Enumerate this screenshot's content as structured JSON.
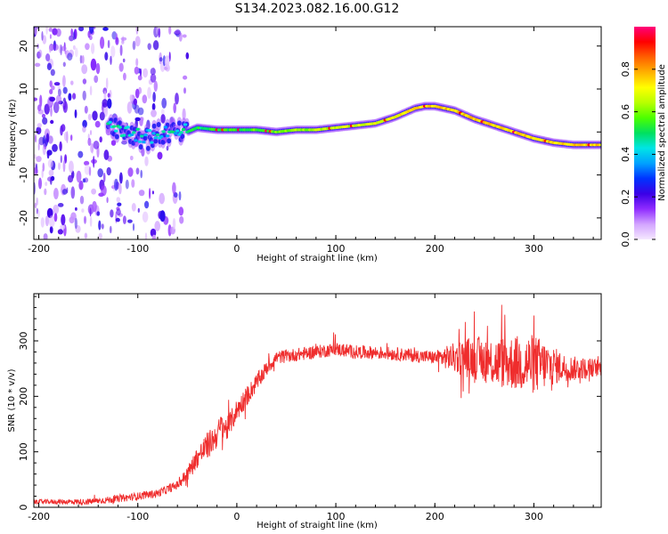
{
  "title": "S134.2023.082.16.00.G12",
  "chart_data": [
    {
      "type": "heatmap",
      "xlabel": "Height of straight line (km)",
      "ylabel": "Frequency (Hz)",
      "xlim": [
        -205,
        368
      ],
      "ylim": [
        -25,
        24.5
      ],
      "xticks": [
        -200,
        -100,
        0,
        100,
        200,
        300
      ],
      "yticks": [
        -20,
        -10,
        0,
        10,
        20
      ],
      "ridge": {
        "x": [
          -130,
          -110,
          -90,
          -70,
          -55,
          -40,
          -20,
          0,
          20,
          40,
          60,
          80,
          100,
          120,
          140,
          160,
          170,
          180,
          190,
          200,
          210,
          220,
          240,
          260,
          280,
          300,
          320,
          340,
          368
        ],
        "y": [
          2.5,
          0,
          -1.5,
          0,
          -0.5,
          1,
          0.5,
          0.5,
          0.5,
          0,
          0.5,
          0.5,
          1,
          1.5,
          2,
          3.5,
          4.5,
          5.5,
          6,
          6,
          5.5,
          5,
          3,
          1.5,
          0,
          -1.5,
          -2.5,
          -3,
          -3
        ]
      },
      "noise_region_x": [
        -205,
        -50
      ],
      "colorbar": {
        "label": "Normalized spectral amplitude",
        "ticks": [
          "0.0",
          "0.2",
          "0.4",
          "0.6",
          "0.8"
        ],
        "range": [
          0,
          1
        ],
        "stops": [
          "#f5e8ff",
          "#d3a5ff",
          "#8f2cff",
          "#3b00e6",
          "#0033ff",
          "#00a0ff",
          "#00e5e5",
          "#00e060",
          "#4cff00",
          "#b8ff00",
          "#ffff00",
          "#ffb000",
          "#ff6000",
          "#ff0000",
          "#ff007a"
        ]
      },
      "grid": false
    },
    {
      "type": "line",
      "xlabel": "Height of straight line (km)",
      "ylabel": "SNR (10 * v/v)",
      "xlim": [
        -205,
        368
      ],
      "ylim": [
        0,
        385
      ],
      "xticks": [
        -200,
        -100,
        0,
        100,
        200,
        300
      ],
      "yticks": [
        0,
        100,
        200,
        300
      ],
      "color": "#ef2d2d",
      "trend": {
        "x": [
          -205,
          -150,
          -120,
          -100,
          -80,
          -60,
          -50,
          -40,
          -30,
          -20,
          -15,
          -10,
          0,
          10,
          20,
          30,
          40,
          60,
          80,
          100,
          120,
          150,
          200,
          220,
          240,
          260,
          280,
          300,
          320,
          340,
          368
        ],
        "y": [
          10,
          10,
          15,
          20,
          25,
          40,
          60,
          90,
          110,
          130,
          150,
          140,
          175,
          200,
          225,
          250,
          270,
          275,
          280,
          285,
          280,
          278,
          270,
          270,
          270,
          262,
          260,
          258,
          255,
          250,
          252
        ]
      },
      "spread": {
        "x": [
          -205,
          -60,
          -30,
          0,
          40,
          200,
          230,
          260,
          300,
          330,
          368
        ],
        "y": [
          4,
          8,
          25,
          20,
          12,
          12,
          35,
          45,
          55,
          25,
          15
        ]
      },
      "grid": false
    }
  ]
}
